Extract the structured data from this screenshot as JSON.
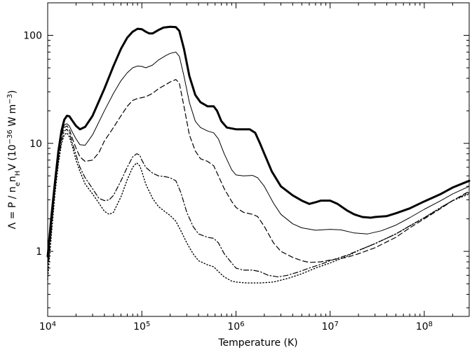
{
  "chart_data": {
    "type": "line",
    "title": "",
    "xlabel": "Temperature (K)",
    "ylabel_parts": {
      "main": "Λ = P / n",
      "sub_e": "e",
      "mid": "n",
      "sub_H": "H",
      "after": "V (10",
      "sup": "−36",
      "unit": " W m",
      "sup2": "−3",
      "close": ")"
    },
    "x_scale": "log",
    "y_scale": "log",
    "xlim": [
      10000,
      300000000
    ],
    "ylim": [
      0.25,
      200
    ],
    "grid": false,
    "x_ticks": [
      {
        "value": 10000,
        "base": "10",
        "exp": "4"
      },
      {
        "value": 100000,
        "base": "10",
        "exp": "5"
      },
      {
        "value": 1000000,
        "base": "10",
        "exp": "6"
      },
      {
        "value": 10000000,
        "base": "10",
        "exp": "7"
      },
      {
        "value": 100000000,
        "base": "10",
        "exp": "8"
      }
    ],
    "y_ticks": [
      {
        "value": 1,
        "label": "1"
      },
      {
        "value": 10,
        "label": "10"
      },
      {
        "value": 100,
        "label": "100"
      }
    ],
    "series": [
      {
        "style": "thick-solid",
        "points": [
          [
            10000,
            0.9
          ],
          [
            11000,
            2.2
          ],
          [
            12000,
            4.5
          ],
          [
            13000,
            8.5
          ],
          [
            14000,
            13
          ],
          [
            15000,
            16.5
          ],
          [
            16000,
            18
          ],
          [
            17000,
            17.8
          ],
          [
            18000,
            16.5
          ],
          [
            20000,
            14.5
          ],
          [
            22000,
            13.5
          ],
          [
            25000,
            14.2
          ],
          [
            30000,
            18
          ],
          [
            40000,
            32
          ],
          [
            50000,
            52
          ],
          [
            60000,
            75
          ],
          [
            70000,
            95
          ],
          [
            80000,
            108
          ],
          [
            90000,
            115
          ],
          [
            100000,
            114
          ],
          [
            110000,
            108
          ],
          [
            120000,
            104
          ],
          [
            130000,
            104
          ],
          [
            150000,
            112
          ],
          [
            170000,
            118
          ],
          [
            200000,
            120
          ],
          [
            230000,
            119
          ],
          [
            250000,
            110
          ],
          [
            280000,
            75
          ],
          [
            320000,
            42
          ],
          [
            370000,
            28
          ],
          [
            420000,
            24
          ],
          [
            500000,
            22
          ],
          [
            580000,
            22
          ],
          [
            630000,
            20
          ],
          [
            700000,
            16
          ],
          [
            800000,
            14
          ],
          [
            1000000,
            13.5
          ],
          [
            1200000,
            13.5
          ],
          [
            1400000,
            13.5
          ],
          [
            1600000,
            12.5
          ],
          [
            1800000,
            10
          ],
          [
            2000000,
            8
          ],
          [
            2400000,
            5.5
          ],
          [
            3000000,
            4
          ],
          [
            4000000,
            3.3
          ],
          [
            5000000,
            2.95
          ],
          [
            6000000,
            2.75
          ],
          [
            7000000,
            2.85
          ],
          [
            8000000,
            2.95
          ],
          [
            10000000,
            2.95
          ],
          [
            12000000,
            2.75
          ],
          [
            15000000,
            2.4
          ],
          [
            18000000,
            2.2
          ],
          [
            22000000,
            2.08
          ],
          [
            27000000,
            2.05
          ],
          [
            30000000,
            2.08
          ],
          [
            40000000,
            2.12
          ],
          [
            50000000,
            2.25
          ],
          [
            70000000,
            2.5
          ],
          [
            100000000,
            2.9
          ],
          [
            150000000,
            3.4
          ],
          [
            200000000,
            3.9
          ],
          [
            300000000,
            4.5
          ]
        ]
      },
      {
        "style": "thin-solid",
        "points": [
          [
            10000,
            0.8
          ],
          [
            11000,
            2.0
          ],
          [
            12000,
            4.2
          ],
          [
            13000,
            8
          ],
          [
            14000,
            12
          ],
          [
            15000,
            14.8
          ],
          [
            16000,
            15.2
          ],
          [
            17000,
            14.5
          ],
          [
            18000,
            13
          ],
          [
            20000,
            11
          ],
          [
            22000,
            9.7
          ],
          [
            25000,
            9.6
          ],
          [
            30000,
            12
          ],
          [
            40000,
            20
          ],
          [
            50000,
            29
          ],
          [
            60000,
            38
          ],
          [
            70000,
            45
          ],
          [
            80000,
            50
          ],
          [
            90000,
            52
          ],
          [
            100000,
            51.5
          ],
          [
            110000,
            50
          ],
          [
            130000,
            53
          ],
          [
            150000,
            59
          ],
          [
            180000,
            65
          ],
          [
            200000,
            68
          ],
          [
            230000,
            70
          ],
          [
            250000,
            64
          ],
          [
            280000,
            42
          ],
          [
            320000,
            24
          ],
          [
            370000,
            16
          ],
          [
            420000,
            14
          ],
          [
            500000,
            13
          ],
          [
            580000,
            12.5
          ],
          [
            650000,
            11
          ],
          [
            750000,
            8
          ],
          [
            900000,
            5.7
          ],
          [
            1000000,
            5.1
          ],
          [
            1200000,
            5
          ],
          [
            1500000,
            5.05
          ],
          [
            1700000,
            4.8
          ],
          [
            2000000,
            4
          ],
          [
            2500000,
            2.8
          ],
          [
            3000000,
            2.2
          ],
          [
            4000000,
            1.8
          ],
          [
            5000000,
            1.65
          ],
          [
            7000000,
            1.57
          ],
          [
            10000000,
            1.6
          ],
          [
            13000000,
            1.58
          ],
          [
            18000000,
            1.48
          ],
          [
            25000000,
            1.45
          ],
          [
            35000000,
            1.55
          ],
          [
            50000000,
            1.75
          ],
          [
            70000000,
            2.05
          ],
          [
            100000000,
            2.45
          ],
          [
            150000000,
            2.95
          ],
          [
            200000000,
            3.4
          ],
          [
            300000000,
            4.0
          ]
        ]
      },
      {
        "style": "dashed",
        "points": [
          [
            10000,
            0.75
          ],
          [
            11000,
            1.9
          ],
          [
            12000,
            4.0
          ],
          [
            13000,
            7.5
          ],
          [
            14000,
            11.5
          ],
          [
            15000,
            14
          ],
          [
            16000,
            14.5
          ],
          [
            17000,
            13.5
          ],
          [
            18000,
            11.5
          ],
          [
            20000,
            9
          ],
          [
            22000,
            7.5
          ],
          [
            25000,
            6.8
          ],
          [
            30000,
            7
          ],
          [
            35000,
            8.2
          ],
          [
            40000,
            10.5
          ],
          [
            50000,
            14
          ],
          [
            60000,
            18
          ],
          [
            70000,
            22
          ],
          [
            80000,
            25
          ],
          [
            90000,
            26
          ],
          [
            100000,
            26.5
          ],
          [
            110000,
            27
          ],
          [
            130000,
            29
          ],
          [
            150000,
            32
          ],
          [
            180000,
            35
          ],
          [
            200000,
            37
          ],
          [
            230000,
            39
          ],
          [
            250000,
            36
          ],
          [
            280000,
            22
          ],
          [
            320000,
            12
          ],
          [
            370000,
            8.5
          ],
          [
            420000,
            7.2
          ],
          [
            500000,
            6.8
          ],
          [
            580000,
            6.2
          ],
          [
            650000,
            5
          ],
          [
            750000,
            3.8
          ],
          [
            900000,
            2.9
          ],
          [
            1000000,
            2.55
          ],
          [
            1200000,
            2.3
          ],
          [
            1500000,
            2.2
          ],
          [
            1700000,
            2.1
          ],
          [
            2000000,
            1.7
          ],
          [
            2500000,
            1.2
          ],
          [
            3000000,
            1.0
          ],
          [
            4000000,
            0.88
          ],
          [
            5000000,
            0.82
          ],
          [
            6000000,
            0.79
          ],
          [
            8000000,
            0.8
          ],
          [
            10000000,
            0.83
          ],
          [
            15000000,
            0.88
          ],
          [
            20000000,
            0.95
          ],
          [
            30000000,
            1.08
          ],
          [
            50000000,
            1.35
          ],
          [
            70000000,
            1.65
          ],
          [
            100000000,
            2.0
          ],
          [
            150000000,
            2.5
          ],
          [
            200000000,
            2.95
          ],
          [
            300000000,
            3.6
          ]
        ]
      },
      {
        "style": "dash-dot",
        "points": [
          [
            10000,
            0.65
          ],
          [
            11000,
            1.7
          ],
          [
            12000,
            3.8
          ],
          [
            13000,
            7
          ],
          [
            14000,
            10.5
          ],
          [
            15000,
            13
          ],
          [
            16000,
            13.5
          ],
          [
            17000,
            12.5
          ],
          [
            18000,
            10.5
          ],
          [
            20000,
            7.8
          ],
          [
            22000,
            6
          ],
          [
            25000,
            4.8
          ],
          [
            30000,
            3.8
          ],
          [
            35000,
            3.1
          ],
          [
            40000,
            2.95
          ],
          [
            45000,
            3.0
          ],
          [
            50000,
            3.3
          ],
          [
            60000,
            4.5
          ],
          [
            70000,
            6
          ],
          [
            80000,
            7.5
          ],
          [
            88000,
            8
          ],
          [
            95000,
            7.8
          ],
          [
            100000,
            7
          ],
          [
            110000,
            6
          ],
          [
            130000,
            5.3
          ],
          [
            150000,
            5
          ],
          [
            180000,
            4.9
          ],
          [
            200000,
            4.8
          ],
          [
            230000,
            4.5
          ],
          [
            260000,
            3.5
          ],
          [
            300000,
            2.3
          ],
          [
            350000,
            1.7
          ],
          [
            400000,
            1.45
          ],
          [
            500000,
            1.35
          ],
          [
            580000,
            1.32
          ],
          [
            650000,
            1.2
          ],
          [
            750000,
            0.95
          ],
          [
            900000,
            0.78
          ],
          [
            1000000,
            0.7
          ],
          [
            1200000,
            0.67
          ],
          [
            1500000,
            0.67
          ],
          [
            1800000,
            0.65
          ],
          [
            2200000,
            0.6
          ],
          [
            2800000,
            0.58
          ],
          [
            3500000,
            0.6
          ],
          [
            4500000,
            0.64
          ],
          [
            6000000,
            0.7
          ],
          [
            8000000,
            0.76
          ],
          [
            10000000,
            0.82
          ],
          [
            15000000,
            0.92
          ],
          [
            20000000,
            1.02
          ],
          [
            30000000,
            1.18
          ],
          [
            50000000,
            1.45
          ],
          [
            70000000,
            1.72
          ],
          [
            100000000,
            2.05
          ],
          [
            150000000,
            2.55
          ],
          [
            200000000,
            2.95
          ],
          [
            300000000,
            3.5
          ]
        ]
      },
      {
        "style": "dotted",
        "points": [
          [
            10000,
            0.55
          ],
          [
            11000,
            1.5
          ],
          [
            12000,
            3.5
          ],
          [
            13000,
            6.5
          ],
          [
            14000,
            9.8
          ],
          [
            15000,
            12
          ],
          [
            16000,
            12.5
          ],
          [
            17000,
            11.5
          ],
          [
            18000,
            9.8
          ],
          [
            20000,
            7
          ],
          [
            22000,
            5.5
          ],
          [
            25000,
            4.2
          ],
          [
            30000,
            3.4
          ],
          [
            35000,
            2.8
          ],
          [
            40000,
            2.35
          ],
          [
            45000,
            2.2
          ],
          [
            50000,
            2.3
          ],
          [
            60000,
            3.2
          ],
          [
            70000,
            4.6
          ],
          [
            80000,
            6
          ],
          [
            88000,
            6.6
          ],
          [
            95000,
            6.2
          ],
          [
            100000,
            5.5
          ],
          [
            110000,
            4.2
          ],
          [
            130000,
            3.1
          ],
          [
            150000,
            2.6
          ],
          [
            180000,
            2.3
          ],
          [
            200000,
            2.15
          ],
          [
            230000,
            1.9
          ],
          [
            260000,
            1.55
          ],
          [
            300000,
            1.2
          ],
          [
            350000,
            0.95
          ],
          [
            400000,
            0.82
          ],
          [
            500000,
            0.75
          ],
          [
            580000,
            0.72
          ],
          [
            650000,
            0.65
          ],
          [
            750000,
            0.58
          ],
          [
            900000,
            0.53
          ],
          [
            1000000,
            0.52
          ],
          [
            1300000,
            0.51
          ],
          [
            1800000,
            0.51
          ],
          [
            2500000,
            0.52
          ],
          [
            3500000,
            0.56
          ],
          [
            5000000,
            0.62
          ],
          [
            7000000,
            0.7
          ],
          [
            10000000,
            0.78
          ],
          [
            15000000,
            0.9
          ],
          [
            20000000,
            1.02
          ],
          [
            30000000,
            1.18
          ],
          [
            50000000,
            1.45
          ],
          [
            70000000,
            1.72
          ],
          [
            100000000,
            2.05
          ],
          [
            150000000,
            2.55
          ],
          [
            200000000,
            2.95
          ],
          [
            300000000,
            3.4
          ]
        ]
      }
    ]
  }
}
